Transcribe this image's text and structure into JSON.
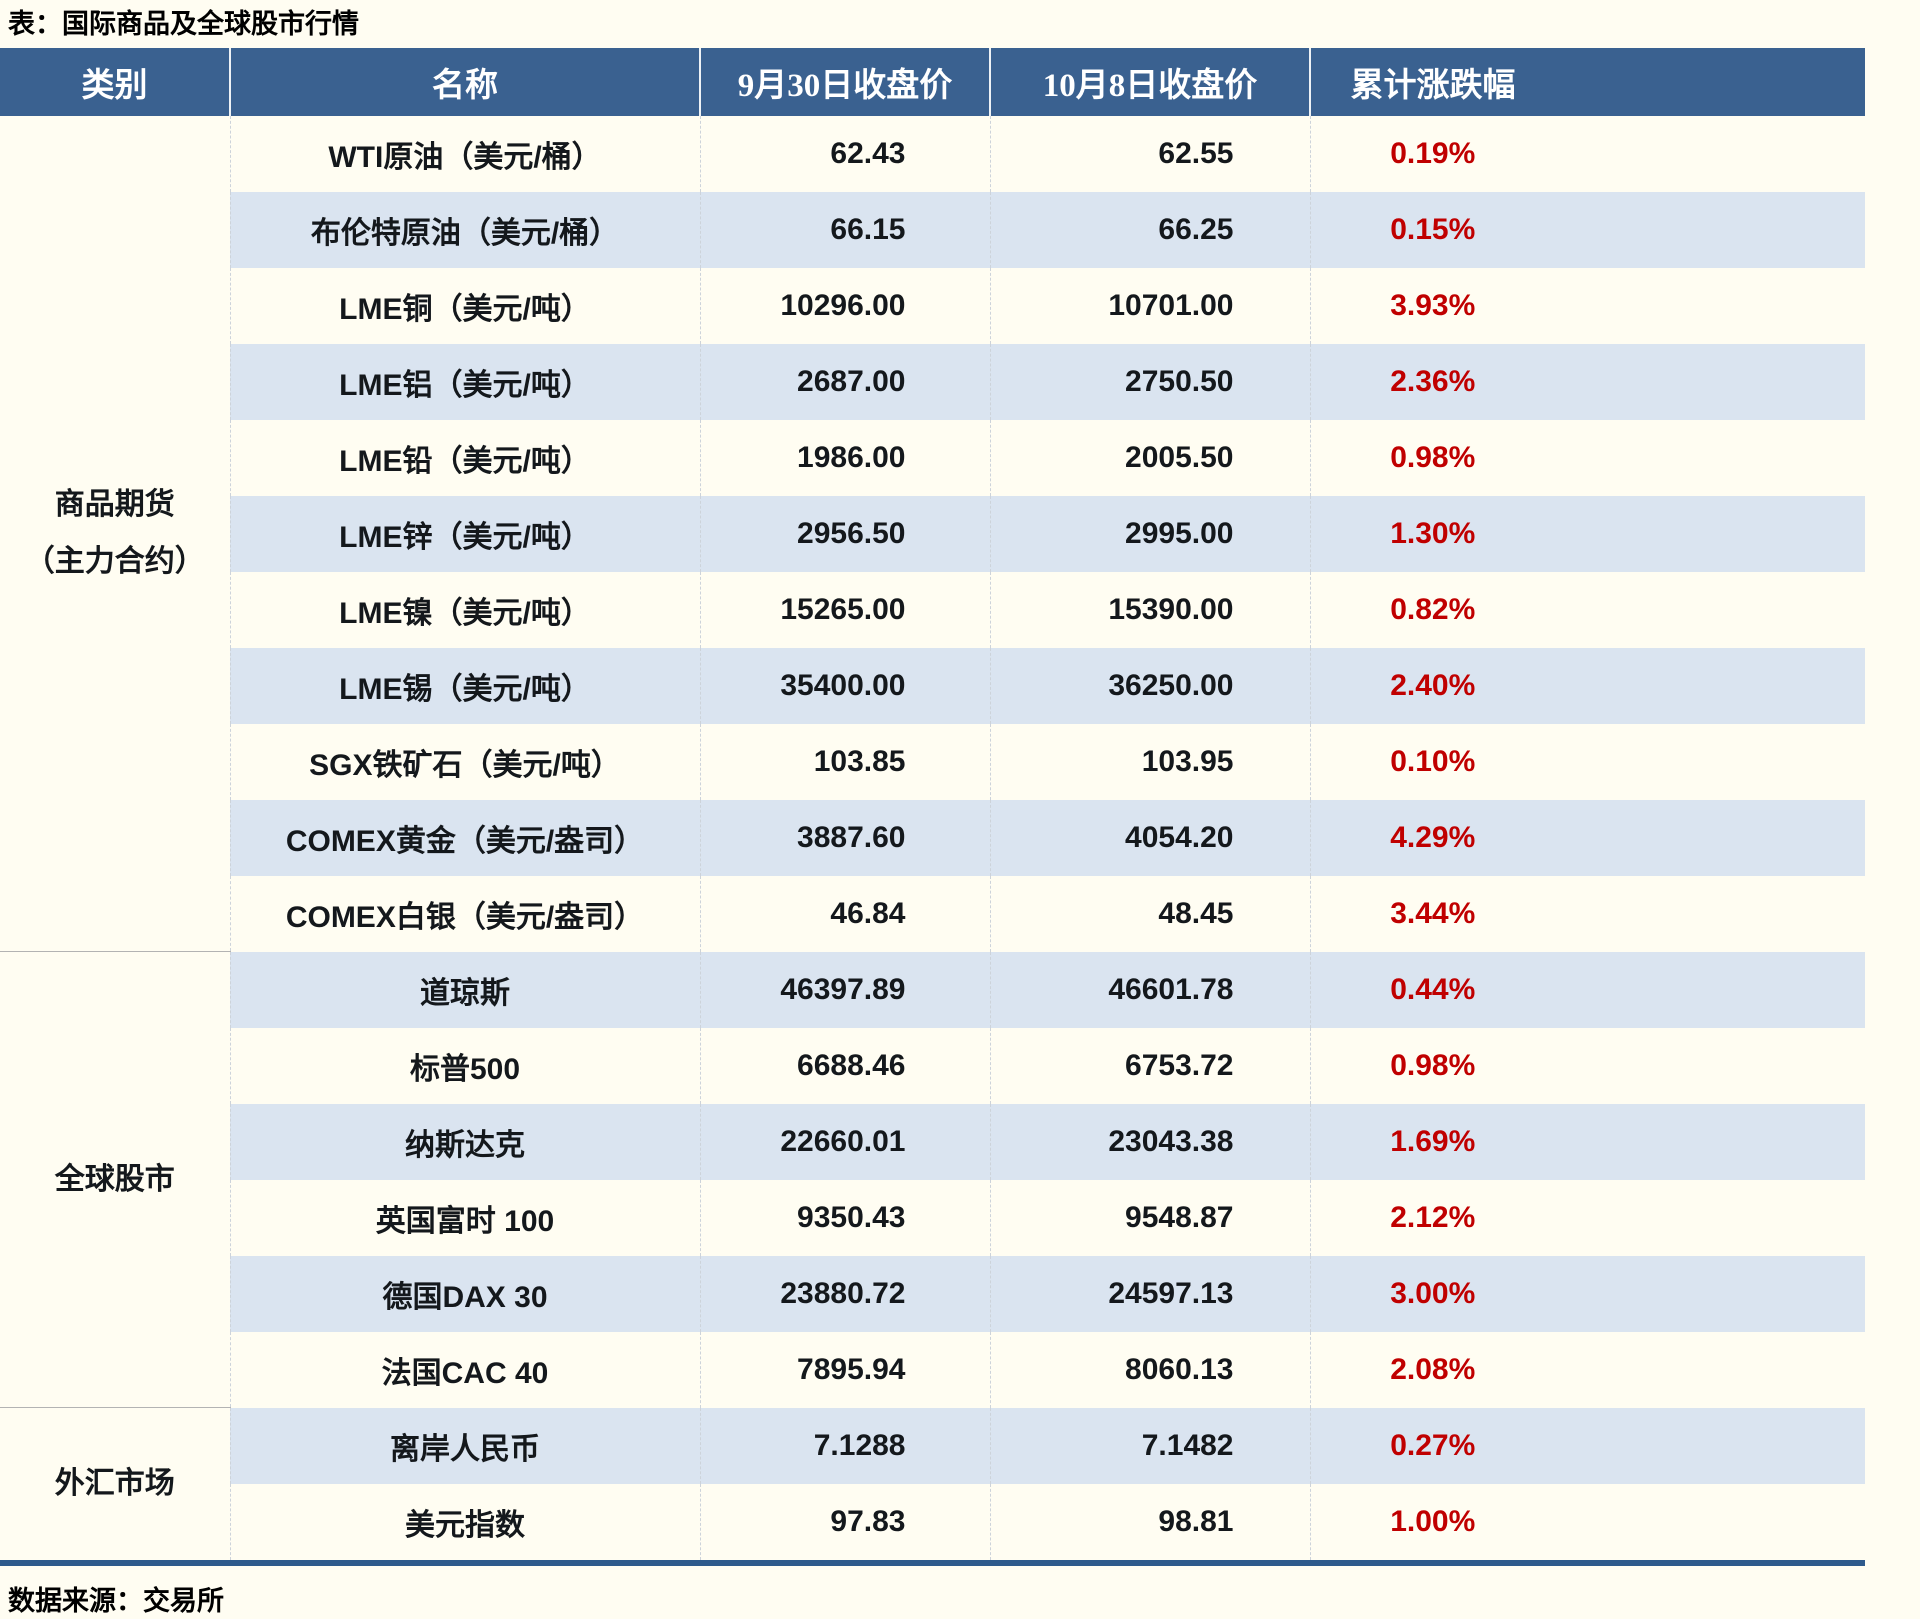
{
  "colors": {
    "page_bg": "#fffdf2",
    "header_bg": "#3a6190",
    "header_text": "#ffffff",
    "stripe": "#dae4f0",
    "accent_red": "#c00000",
    "body_text": "#14181c",
    "bottom_border": "#2e5a8c",
    "group_divider": "#b3b3b3"
  },
  "chart_data": {
    "type": "table",
    "title": "表：国际商品及全球股市行情",
    "source_note": "数据来源：交易所",
    "columns": [
      "类别",
      "名称",
      "9月30日收盘价",
      "10月8日收盘价",
      "累计涨跌幅"
    ],
    "change_color": "#c00000",
    "groups": [
      {
        "category_lines": [
          "商品期货",
          "（主力合约）"
        ],
        "rows": [
          [
            "WTI原油（美元/桶）",
            "62.43",
            "62.55",
            "0.19%"
          ],
          [
            "布伦特原油（美元/桶）",
            "66.15",
            "66.25",
            "0.15%"
          ],
          [
            "LME铜（美元/吨）",
            "10296.00",
            "10701.00",
            "3.93%"
          ],
          [
            "LME铝（美元/吨）",
            "2687.00",
            "2750.50",
            "2.36%"
          ],
          [
            "LME铅（美元/吨）",
            "1986.00",
            "2005.50",
            "0.98%"
          ],
          [
            "LME锌（美元/吨）",
            "2956.50",
            "2995.00",
            "1.30%"
          ],
          [
            "LME镍（美元/吨）",
            "15265.00",
            "15390.00",
            "0.82%"
          ],
          [
            "LME锡（美元/吨）",
            "35400.00",
            "36250.00",
            "2.40%"
          ],
          [
            "SGX铁矿石（美元/吨）",
            "103.85",
            "103.95",
            "0.10%"
          ],
          [
            "COMEX黄金（美元/盎司）",
            "3887.60",
            "4054.20",
            "4.29%"
          ],
          [
            "COMEX白银（美元/盎司）",
            "46.84",
            "48.45",
            "3.44%"
          ]
        ]
      },
      {
        "category_lines": [
          "全球股市"
        ],
        "rows": [
          [
            "道琼斯",
            "46397.89",
            "46601.78",
            "0.44%"
          ],
          [
            "标普500",
            "6688.46",
            "6753.72",
            "0.98%"
          ],
          [
            "纳斯达克",
            "22660.01",
            "23043.38",
            "1.69%"
          ],
          [
            "英国富时 100",
            "9350.43",
            "9548.87",
            "2.12%"
          ],
          [
            "德国DAX 30",
            "23880.72",
            "24597.13",
            "3.00%"
          ],
          [
            "法国CAC 40",
            "7895.94",
            "8060.13",
            "2.08%"
          ]
        ]
      },
      {
        "category_lines": [
          "外汇市场"
        ],
        "rows": [
          [
            "离岸人民币",
            "7.1288",
            "7.1482",
            "0.27%"
          ],
          [
            "美元指数",
            "97.83",
            "98.81",
            "1.00%"
          ]
        ]
      }
    ]
  }
}
